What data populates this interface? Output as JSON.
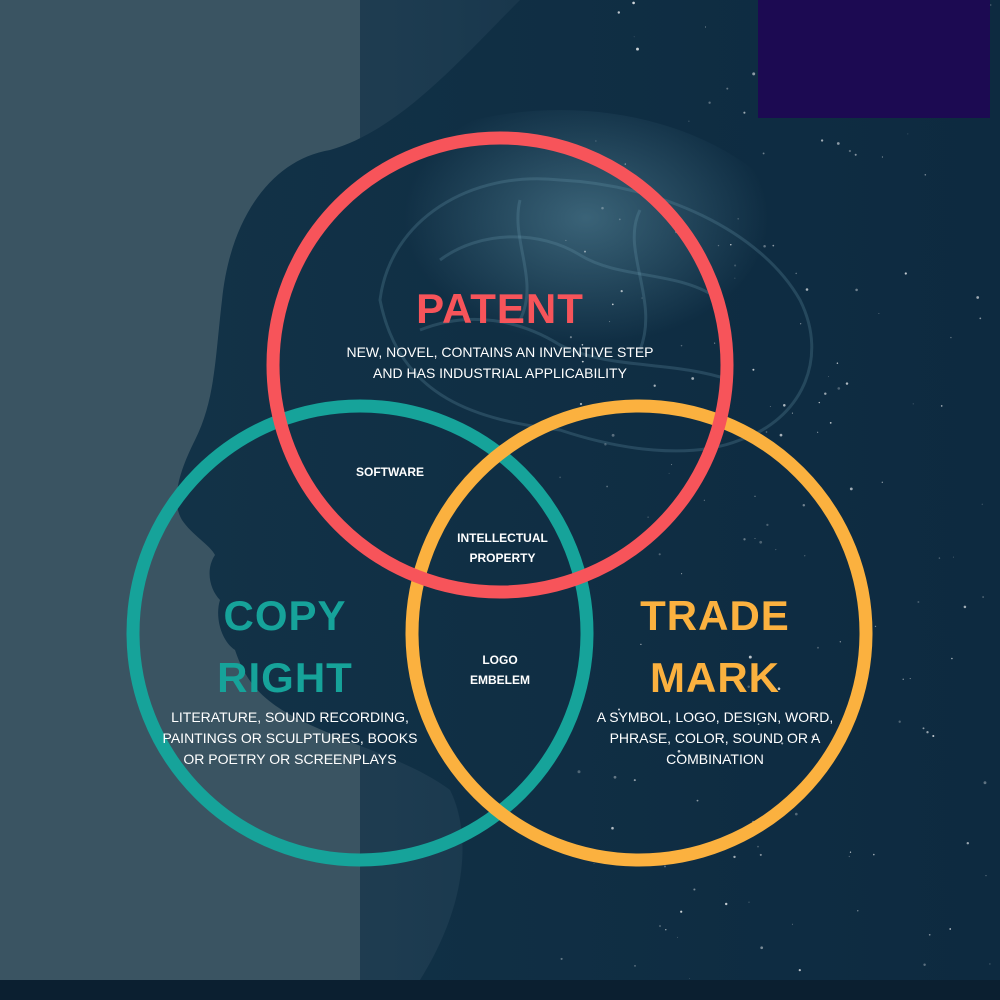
{
  "colors": {
    "patent": "#f7545a",
    "copyright": "#16a39a",
    "trademark": "#fbb13f",
    "corner_box": "#1c0a52"
  },
  "patent": {
    "title": "PATENT",
    "description_lines": [
      "NEW, NOVEL, CONTAINS AN INVENTIVE STEP",
      "AND HAS INDUSTRIAL APPLICABILITY"
    ]
  },
  "copyright": {
    "title_lines": [
      "COPY",
      "RIGHT"
    ],
    "description_lines": [
      "LITERATURE, SOUND RECORDING,",
      "PAINTINGS OR SCULPTURES, BOOKS",
      "OR POETRY OR SCREENPLAYS"
    ]
  },
  "trademark": {
    "title_lines": [
      "TRADE",
      "MARK"
    ],
    "description_lines": [
      "A SYMBOL, LOGO, DESIGN, WORD,",
      "PHRASE, COLOR, SOUND OR A",
      "COMBINATION"
    ]
  },
  "overlaps": {
    "patent_copyright": "SOFTWARE",
    "center_lines": [
      "INTELLECTUAL",
      "PROPERTY"
    ],
    "copyright_trademark_lines": [
      "LOGO",
      "EMBELEM"
    ]
  }
}
